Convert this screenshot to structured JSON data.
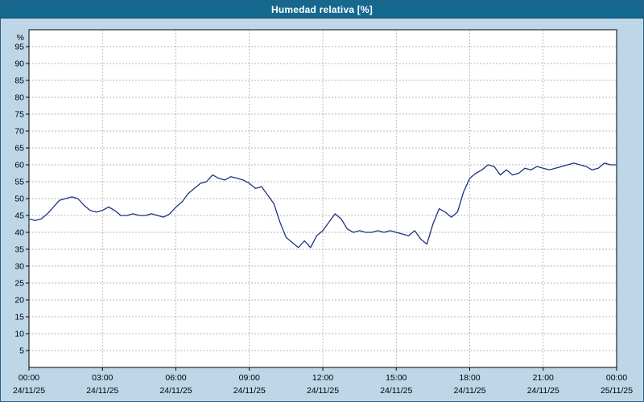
{
  "window": {
    "title": "Humedad relativa [%]"
  },
  "colors": {
    "titlebar": "#15698f",
    "title_text": "#ffffff",
    "frame_bg": "#bdd7e8",
    "plot_bg": "#ffffff",
    "grid": "#a0a0a0",
    "axis": "#000000",
    "tick_text": "#000000",
    "line": "#1f3282"
  },
  "chart_data": {
    "type": "line",
    "title": "Humedad relativa [%]",
    "xlabel": "",
    "ylabel": "%",
    "xlim": [
      0,
      24
    ],
    "ylim": [
      0,
      100
    ],
    "grid": true,
    "legend_position": "none",
    "yticks": [
      5,
      10,
      15,
      20,
      25,
      30,
      35,
      40,
      45,
      50,
      55,
      60,
      65,
      70,
      75,
      80,
      85,
      90,
      95
    ],
    "xticks": [
      {
        "hour": 0,
        "time": "00:00",
        "date": "24/11/25"
      },
      {
        "hour": 3,
        "time": "03:00",
        "date": "24/11/25"
      },
      {
        "hour": 6,
        "time": "06:00",
        "date": "24/11/25"
      },
      {
        "hour": 9,
        "time": "09:00",
        "date": "24/11/25"
      },
      {
        "hour": 12,
        "time": "12:00",
        "date": "24/11/25"
      },
      {
        "hour": 15,
        "time": "15:00",
        "date": "24/11/25"
      },
      {
        "hour": 18,
        "time": "18:00",
        "date": "24/11/25"
      },
      {
        "hour": 21,
        "time": "21:00",
        "date": "24/11/25"
      },
      {
        "hour": 24,
        "time": "00:00",
        "date": "25/11/25"
      }
    ],
    "series": [
      {
        "name": "Humedad relativa",
        "x": [
          0,
          0.25,
          0.5,
          0.75,
          1,
          1.25,
          1.5,
          1.75,
          2,
          2.25,
          2.5,
          2.75,
          3,
          3.25,
          3.5,
          3.75,
          4,
          4.25,
          4.5,
          4.75,
          5,
          5.25,
          5.5,
          5.75,
          6,
          6.25,
          6.5,
          6.75,
          7,
          7.25,
          7.5,
          7.75,
          8,
          8.25,
          8.5,
          8.75,
          9,
          9.25,
          9.5,
          9.75,
          10,
          10.25,
          10.5,
          10.75,
          11,
          11.25,
          11.5,
          11.75,
          12,
          12.25,
          12.5,
          12.75,
          13,
          13.25,
          13.5,
          13.75,
          14,
          14.25,
          14.5,
          14.75,
          15,
          15.25,
          15.5,
          15.75,
          16,
          16.25,
          16.5,
          16.75,
          17,
          17.25,
          17.5,
          17.75,
          18,
          18.25,
          18.5,
          18.75,
          19,
          19.25,
          19.5,
          19.75,
          20,
          20.25,
          20.5,
          20.75,
          21,
          21.25,
          21.5,
          21.75,
          22,
          22.25,
          22.5,
          22.75,
          23,
          23.25,
          23.5,
          23.75,
          24
        ],
        "values": [
          44,
          43.5,
          44,
          45.5,
          47.5,
          49.5,
          50,
          50.5,
          50,
          48,
          46.5,
          46,
          46.5,
          47.5,
          46.5,
          45,
          45,
          45.5,
          45,
          45,
          45.5,
          45,
          44.5,
          45.5,
          47.5,
          49,
          51.5,
          53,
          54.5,
          55,
          57,
          56,
          55.5,
          56.5,
          56,
          55.5,
          54.5,
          53,
          53.5,
          51,
          48.5,
          43,
          38.5,
          37,
          35.5,
          37.5,
          35.5,
          39,
          40.5,
          43,
          45.5,
          44,
          41,
          40,
          40.5,
          40,
          40,
          40.5,
          40,
          40.5,
          40,
          39.5,
          39,
          40.5,
          38,
          36.5,
          42.5,
          47,
          46,
          44.5,
          46,
          52,
          56,
          57.5,
          58.5,
          60,
          59.5,
          57,
          58.5,
          57,
          57.5,
          59,
          58.5,
          59.5,
          59,
          58.5,
          59,
          59.5,
          60,
          60.5,
          60,
          59.5,
          58.5,
          59,
          60.5,
          60,
          60
        ]
      }
    ]
  }
}
